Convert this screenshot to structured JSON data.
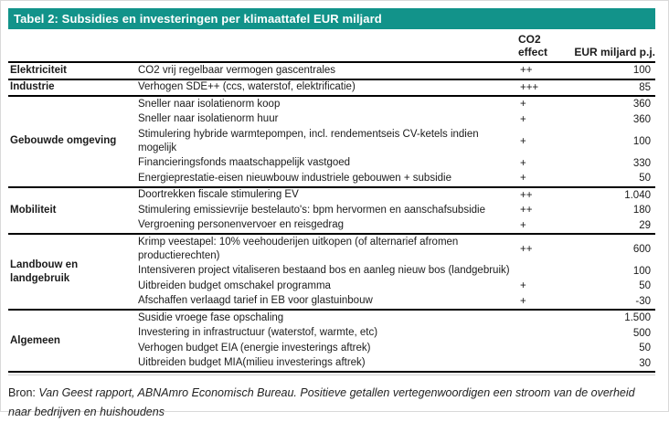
{
  "title": "Tabel 2: Subsidies en investeringen per klimaattafel EUR miljard",
  "columns": {
    "co2": "CO2 effect",
    "eur": "EUR miljard p.j."
  },
  "groups": [
    {
      "category": "Elektriciteit",
      "rows": [
        {
          "desc": "CO2 vrij regelbaar vermogen gascentrales",
          "co2": "++",
          "eur": "100"
        }
      ]
    },
    {
      "category": "Industrie",
      "rows": [
        {
          "desc": "Verhogen SDE++ (ccs, waterstof, elektrificatie)",
          "co2": "+++",
          "eur": "85"
        }
      ]
    },
    {
      "category": "Gebouwde omgeving",
      "rows": [
        {
          "desc": "Sneller naar isolatienorm koop",
          "co2": "+",
          "eur": "360"
        },
        {
          "desc": "Sneller naar isolatienorm huur",
          "co2": "+",
          "eur": "360"
        },
        {
          "desc": "Stimulering hybride warmtepompen, incl. rendementseis CV-ketels indien mogelijk",
          "co2": "+",
          "eur": "100"
        },
        {
          "desc": "Financieringsfonds maatschappelijk vastgoed",
          "co2": "+",
          "eur": "330"
        },
        {
          "desc": "Energieprestatie-eisen nieuwbouw industriele gebouwen + subsidie",
          "co2": "+",
          "eur": "50"
        }
      ]
    },
    {
      "category": "Mobiliteit",
      "rows": [
        {
          "desc": "Doortrekken fiscale stimulering EV",
          "co2": "++",
          "eur": "1.040"
        },
        {
          "desc": "Stimulering emissievrije bestelauto's: bpm hervormen en aanschafsubsidie",
          "co2": "++",
          "eur": "180"
        },
        {
          "desc": "Vergroening personenvervoer en reisgedrag",
          "co2": "+",
          "eur": "29"
        }
      ]
    },
    {
      "category": "Landbouw en landgebruik",
      "rows": [
        {
          "desc": "Krimp veestapel:  10% veehouderijen uitkopen (of alternarief afromen productierechten)",
          "co2": "++",
          "eur": "600"
        },
        {
          "desc": "Intensiveren project vitaliseren bestaand bos en aanleg nieuw bos (landgebruik)",
          "co2": "",
          "eur": "100"
        },
        {
          "desc": "Uitbreiden budget omschakel programma",
          "co2": "+",
          "eur": "50"
        },
        {
          "desc": "Afschaffen verlaagd tarief in EB voor glastuinbouw",
          "co2": "+",
          "eur": "-30"
        }
      ]
    },
    {
      "category": "Algemeen",
      "rows": [
        {
          "desc": "Susidie vroege fase opschaling",
          "co2": "",
          "eur": "1.500"
        },
        {
          "desc": "Investering in infrastructuur (waterstof, warmte, etc)",
          "co2": "",
          "eur": "500"
        },
        {
          "desc": "Verhogen budget EIA (energie investerings aftrek)",
          "co2": "",
          "eur": "50"
        },
        {
          "desc": "Uitbreiden budget MIA(milieu investerings aftrek)",
          "co2": "",
          "eur": "30"
        }
      ]
    }
  ],
  "footer": {
    "label": "Bron:",
    "text": " Van Geest rapport, ABNAmro Economisch Bureau. Positieve getallen vertegenwoordigen een stroom van de overheid naar bedrijven en huishoudens"
  },
  "colors": {
    "accent": "#12938a",
    "rule": "#000000",
    "frame_border": "#d9d9d9"
  }
}
